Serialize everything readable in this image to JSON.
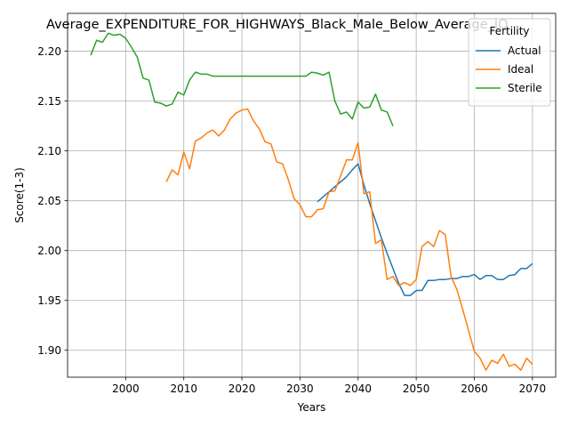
{
  "chart_data": {
    "type": "line",
    "title": "Average_EXPENDITURE_FOR_HIGHWAYS_Black_Male_Below_Average_IQ",
    "xlabel": "Years",
    "ylabel": "Score(1-3)",
    "xlim": [
      1990,
      2074
    ],
    "ylim": [
      1.873,
      2.238
    ],
    "xticks": [
      2000,
      2010,
      2020,
      2030,
      2040,
      2050,
      2060,
      2070
    ],
    "yticks": [
      1.9,
      1.95,
      2.0,
      2.05,
      2.1,
      2.15,
      2.2
    ],
    "grid": true,
    "legend": {
      "title": "Fertility",
      "placement": "top-right"
    },
    "series": [
      {
        "name": "Actual",
        "color": "#1f77b4",
        "x": [
          2033,
          2034,
          2035,
          2036,
          2037,
          2038,
          2039,
          2040,
          2041,
          2042,
          2043,
          2044,
          2045,
          2046,
          2047,
          2048,
          2049,
          2050,
          2051,
          2052,
          2053,
          2054,
          2055,
          2056,
          2057,
          2058,
          2059,
          2060,
          2061,
          2062,
          2063,
          2064,
          2065,
          2066,
          2067,
          2068,
          2069,
          2070
        ],
        "y": [
          2.049,
          2.054,
          2.059,
          2.064,
          2.069,
          2.074,
          2.081,
          2.087,
          2.066,
          2.047,
          2.03,
          2.013,
          1.997,
          1.982,
          1.967,
          1.955,
          1.955,
          1.96,
          1.96,
          1.97,
          1.97,
          1.971,
          1.971,
          1.972,
          1.972,
          1.974,
          1.974,
          1.976,
          1.971,
          1.975,
          1.975,
          1.971,
          1.971,
          1.975,
          1.976,
          1.982,
          1.982,
          1.987
        ]
      },
      {
        "name": "Ideal",
        "color": "#ff7f0e",
        "x": [
          2007,
          2008,
          2009,
          2010,
          2011,
          2012,
          2013,
          2014,
          2015,
          2016,
          2017,
          2018,
          2019,
          2020,
          2021,
          2022,
          2023,
          2024,
          2025,
          2026,
          2027,
          2028,
          2029,
          2030,
          2031,
          2032,
          2033,
          2034,
          2035,
          2036,
          2037,
          2038,
          2039,
          2040,
          2041,
          2042,
          2043,
          2044,
          2045,
          2046,
          2047,
          2048,
          2049,
          2050,
          2051,
          2052,
          2053,
          2054,
          2055,
          2056,
          2057,
          2058,
          2059,
          2060,
          2061,
          2062,
          2063,
          2064,
          2065,
          2066,
          2067,
          2068,
          2069,
          2070
        ],
        "y": [
          2.069,
          2.081,
          2.076,
          2.099,
          2.082,
          2.11,
          2.113,
          2.118,
          2.121,
          2.115,
          2.121,
          2.132,
          2.138,
          2.141,
          2.142,
          2.13,
          2.122,
          2.109,
          2.107,
          2.089,
          2.087,
          2.071,
          2.052,
          2.046,
          2.034,
          2.034,
          2.041,
          2.042,
          2.059,
          2.06,
          2.075,
          2.091,
          2.091,
          2.108,
          2.057,
          2.059,
          2.007,
          2.011,
          1.971,
          1.974,
          1.965,
          1.968,
          1.965,
          1.971,
          2.004,
          2.009,
          2.004,
          2.02,
          2.016,
          1.974,
          1.961,
          1.941,
          1.92,
          1.899,
          1.892,
          1.88,
          1.89,
          1.887,
          1.896,
          1.884,
          1.886,
          1.88,
          1.892,
          1.886
        ]
      },
      {
        "name": "Sterile",
        "color": "#2ca02c",
        "x": [
          1994,
          1995,
          1996,
          1997,
          1998,
          1999,
          2000,
          2001,
          2002,
          2003,
          2004,
          2005,
          2006,
          2007,
          2008,
          2009,
          2010,
          2011,
          2012,
          2013,
          2014,
          2015,
          2016,
          2017,
          2018,
          2019,
          2020,
          2021,
          2022,
          2023,
          2024,
          2025,
          2026,
          2027,
          2028,
          2029,
          2030,
          2031,
          2032,
          2033,
          2034,
          2035,
          2036,
          2037,
          2038,
          2039,
          2040,
          2041,
          2042,
          2043,
          2044,
          2045,
          2046
        ],
        "y": [
          2.196,
          2.211,
          2.209,
          2.218,
          2.216,
          2.217,
          2.213,
          2.204,
          2.194,
          2.173,
          2.171,
          2.149,
          2.148,
          2.145,
          2.147,
          2.159,
          2.156,
          2.171,
          2.179,
          2.177,
          2.177,
          2.175,
          2.175,
          2.175,
          2.175,
          2.175,
          2.175,
          2.175,
          2.175,
          2.175,
          2.175,
          2.175,
          2.175,
          2.175,
          2.175,
          2.175,
          2.175,
          2.175,
          2.179,
          2.178,
          2.176,
          2.179,
          2.15,
          2.137,
          2.139,
          2.132,
          2.149,
          2.143,
          2.144,
          2.157,
          2.141,
          2.139,
          2.125
        ]
      }
    ]
  }
}
